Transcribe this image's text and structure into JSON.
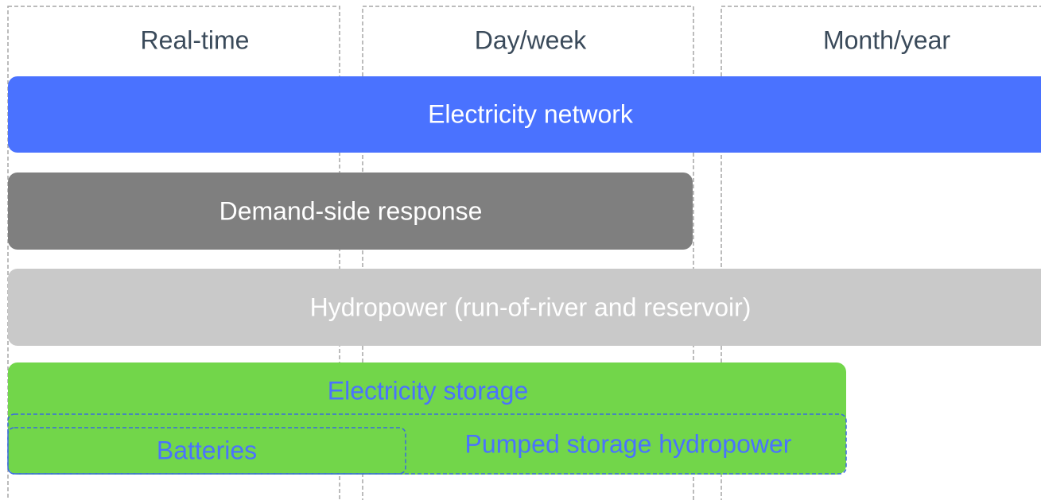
{
  "columns": [
    "Real-time",
    "Day/week",
    "Month/year"
  ],
  "bars": [
    "Electricity network",
    "Demand-side response",
    "Hydropower (run-of-river and reservoir)"
  ],
  "storage": {
    "label": "Electricity storage",
    "items": [
      "Batteries",
      "Pumped storage hydropower"
    ]
  }
}
